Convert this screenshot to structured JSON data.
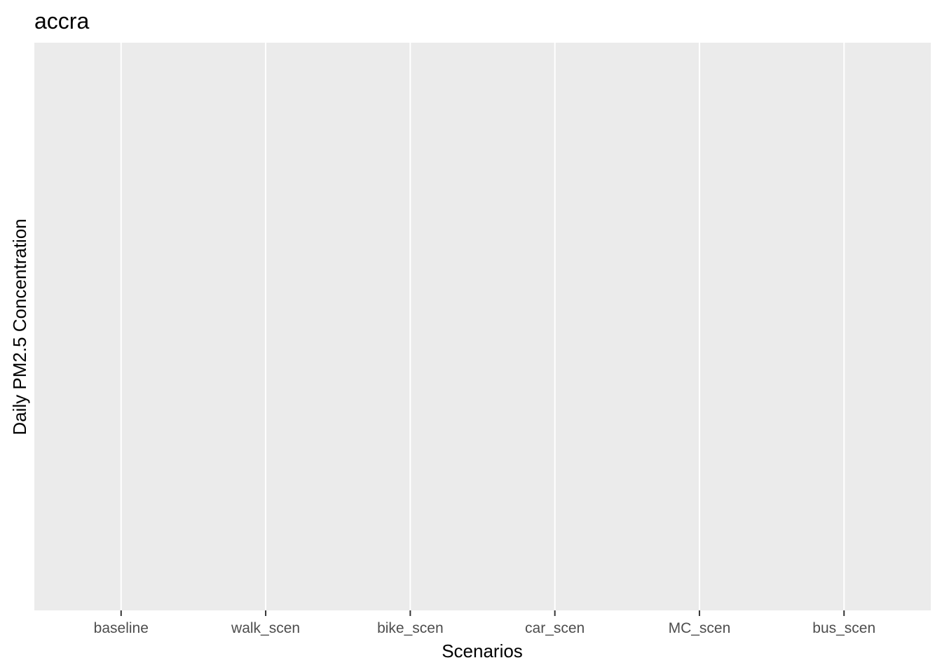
{
  "chart_data": {
    "type": "bar",
    "title": "accra",
    "xlabel": "Scenarios",
    "ylabel": "Daily PM2.5 Concentration",
    "categories": [
      "baseline",
      "walk_scen",
      "bike_scen",
      "car_scen",
      "MC_scen",
      "bus_scen"
    ],
    "series": [],
    "grid": true,
    "legend": "none",
    "colors": {
      "panel_background": "#ebebeb",
      "grid_line": "#ffffff",
      "tick_mark": "#333333",
      "tick_label": "#4d4d4d",
      "text": "#000000"
    }
  }
}
